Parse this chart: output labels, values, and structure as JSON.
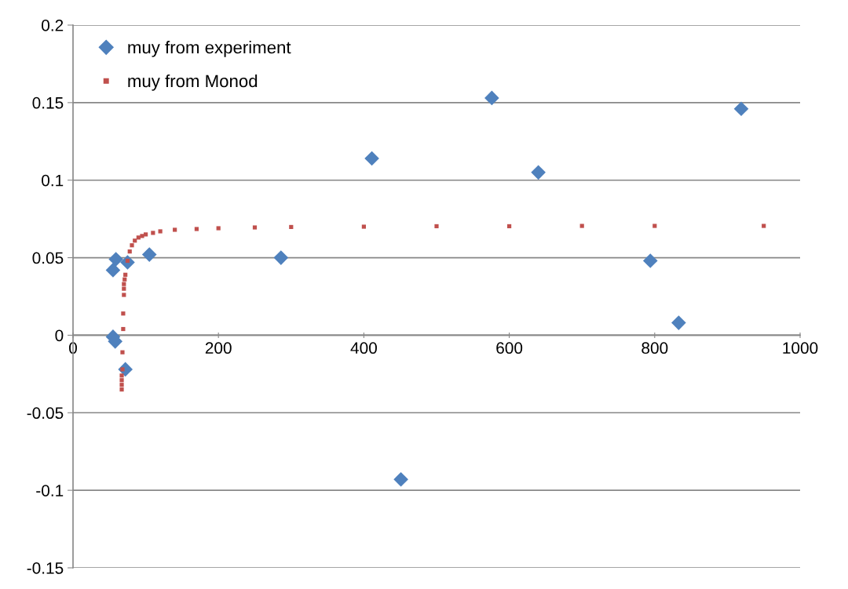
{
  "chart_data": {
    "type": "scatter",
    "xlim": [
      0,
      1000
    ],
    "xticks": [
      0,
      200,
      400,
      600,
      800,
      1000
    ],
    "ylim": [
      -0.15,
      0.2
    ],
    "yticks": [
      -0.15,
      -0.1,
      -0.05,
      0,
      0.05,
      0.1,
      0.15,
      0.2
    ],
    "grid": "y",
    "legend": "top left",
    "series": [
      {
        "name": "muy from experiment",
        "color": "#4f81bd",
        "marker": "diamond",
        "x": [
          55,
          59,
          75,
          105,
          55,
          58,
          72,
          286,
          411,
          451,
          576,
          640,
          794,
          833,
          919
        ],
        "values": [
          0.042,
          0.049,
          0.047,
          0.052,
          -0.001,
          -0.004,
          -0.022,
          0.05,
          0.114,
          -0.093,
          0.153,
          0.105,
          0.048,
          0.008,
          0.146
        ]
      },
      {
        "name": "muy from Monod",
        "color": "#c0504d",
        "marker": "square",
        "x": [
          67,
          67,
          67,
          67,
          68,
          68,
          69,
          69,
          70,
          70,
          70,
          71,
          72,
          75,
          78,
          81,
          85,
          90,
          95,
          100,
          110,
          120,
          140,
          170,
          200,
          250,
          300,
          400,
          500,
          600,
          700,
          800,
          950
        ],
        "values": [
          -0.035,
          -0.032,
          -0.029,
          -0.026,
          -0.022,
          -0.011,
          0.004,
          0.014,
          0.026,
          0.03,
          0.033,
          0.036,
          0.039,
          0.048,
          0.054,
          0.058,
          0.061,
          0.063,
          0.064,
          0.065,
          0.066,
          0.067,
          0.068,
          0.0685,
          0.069,
          0.0695,
          0.0698,
          0.07,
          0.0703,
          0.0703,
          0.0705,
          0.0705,
          0.0705
        ]
      }
    ]
  }
}
